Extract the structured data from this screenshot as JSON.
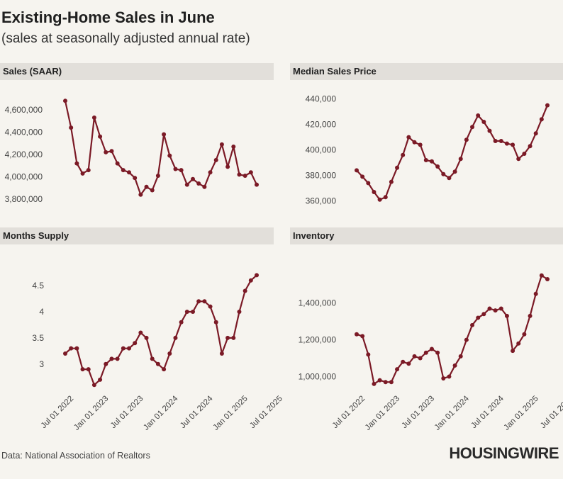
{
  "header": {
    "title": "Existing-Home Sales in June",
    "subtitle": "(sales at seasonally adjusted annual rate)"
  },
  "footer": {
    "source": "Data: National Association of Realtors",
    "logo": "HOUSINGWIRE"
  },
  "colors": {
    "line": "#7b1a26",
    "panel_header": "#e2dfda",
    "background": "#f6f4ef"
  },
  "chart_data": [
    {
      "type": "line",
      "title": "Sales (SAAR)",
      "x_start": "2022-06",
      "x_tick_labels": [
        "Jul 01 2022",
        "Jan 01 2023",
        "Jul 01 2023",
        "Jan 01 2024",
        "Jul 01 2024",
        "Jan 01 2025",
        "Jul 01 2025"
      ],
      "y_tick_values": [
        3800000,
        4000000,
        4200000,
        4400000,
        4600000
      ],
      "y_tick_labels": [
        "3,800,000",
        "4,000,000",
        "4,200,000",
        "4,400,000",
        "4,600,000"
      ],
      "ylim": [
        3750000,
        4720000
      ],
      "values": [
        4680000,
        4440000,
        4120000,
        4030000,
        4060000,
        4530000,
        4360000,
        4220000,
        4230000,
        4120000,
        4060000,
        4040000,
        3990000,
        3840000,
        3910000,
        3880000,
        4010000,
        4380000,
        4190000,
        4070000,
        4060000,
        3930000,
        3980000,
        3940000,
        3910000,
        4040000,
        4150000,
        4290000,
        4090000,
        4270000,
        4020000,
        4010000,
        4040000,
        3930000
      ]
    },
    {
      "type": "line",
      "title": "Median Sales Price",
      "x_start": "2022-06",
      "y_tick_values": [
        360000,
        380000,
        400000,
        420000,
        440000
      ],
      "y_tick_labels": [
        "360,000",
        "380,000",
        "400,000",
        "420,000",
        "440,000"
      ],
      "ylim": [
        357000,
        442000
      ],
      "values": [
        384000,
        379000,
        374000,
        367000,
        361000,
        363000,
        375000,
        386000,
        396000,
        410000,
        406000,
        404000,
        392000,
        391000,
        387000,
        381000,
        378000,
        383000,
        393000,
        408000,
        418000,
        427000,
        422000,
        415000,
        407000,
        407000,
        405000,
        404000,
        393000,
        397000,
        403000,
        413000,
        424000,
        435000
      ]
    },
    {
      "type": "line",
      "title": "Months Supply",
      "x_start": "2022-06",
      "y_tick_values": [
        3,
        3.5,
        4,
        4.5
      ],
      "y_tick_labels": [
        "3",
        "3.5",
        "4",
        "4.5"
      ],
      "ylim": [
        2.55,
        4.8
      ],
      "values": [
        3.2,
        3.3,
        3.3,
        2.9,
        2.9,
        2.6,
        2.7,
        3.0,
        3.1,
        3.1,
        3.3,
        3.3,
        3.4,
        3.6,
        3.5,
        3.1,
        3.0,
        2.9,
        3.2,
        3.5,
        3.8,
        4.0,
        4.0,
        4.2,
        4.2,
        4.1,
        3.8,
        3.2,
        3.5,
        3.5,
        4.0,
        4.4,
        4.6,
        4.7
      ]
    },
    {
      "type": "line",
      "title": "Inventory",
      "x_start": "2022-06",
      "y_tick_values": [
        1000000,
        1200000,
        1400000
      ],
      "y_tick_labels": [
        "1,000,000",
        "1,200,000",
        "1,400,000"
      ],
      "ylim": [
        940000,
        1580000
      ],
      "values": [
        1230000,
        1220000,
        1120000,
        960000,
        980000,
        970000,
        970000,
        1040000,
        1080000,
        1070000,
        1110000,
        1100000,
        1130000,
        1150000,
        1130000,
        990000,
        1000000,
        1060000,
        1110000,
        1200000,
        1280000,
        1320000,
        1340000,
        1370000,
        1360000,
        1370000,
        1330000,
        1140000,
        1180000,
        1230000,
        1330000,
        1450000,
        1550000,
        1530000
      ]
    }
  ]
}
